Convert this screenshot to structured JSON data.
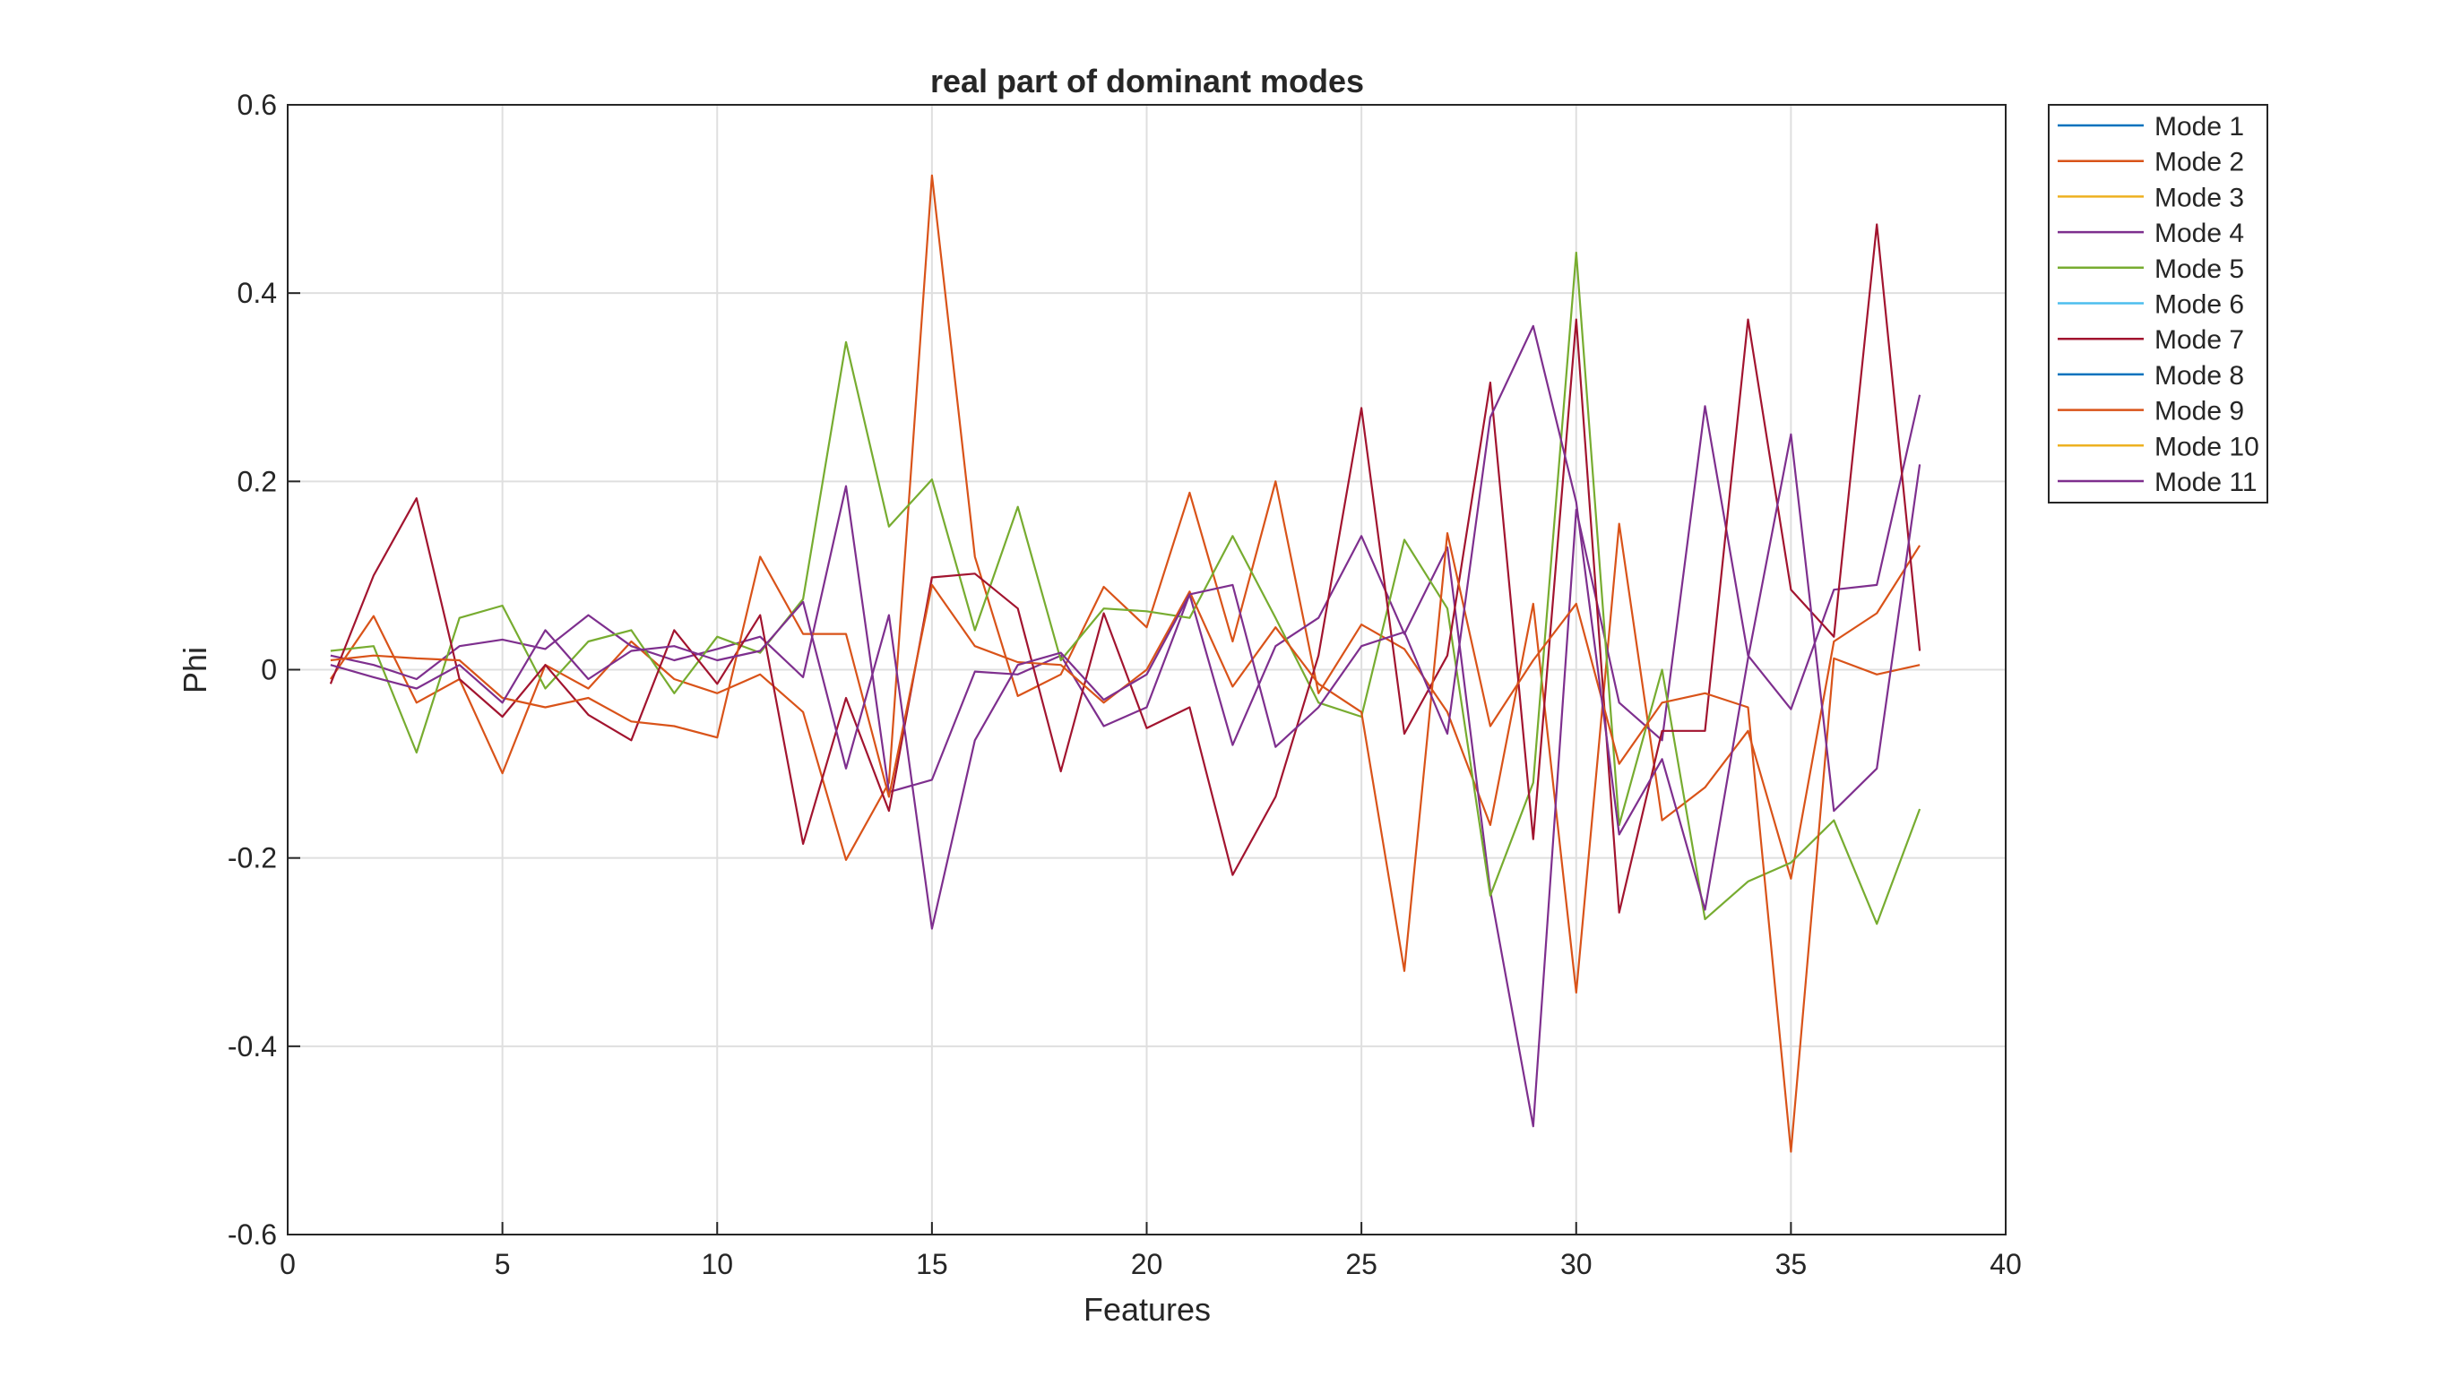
{
  "chart_data": {
    "type": "line",
    "title": "real part of dominant modes",
    "xlabel": "Features",
    "ylabel": "Phi",
    "xlim": [
      0,
      40
    ],
    "ylim": [
      -0.6,
      0.6
    ],
    "xticks": [
      0,
      5,
      10,
      15,
      20,
      25,
      30,
      35,
      40
    ],
    "yticks": [
      0.6,
      0.4,
      0.2,
      0,
      -0.2,
      -0.4,
      -0.6
    ],
    "xtick_labels": [
      "0",
      "5",
      "10",
      "15",
      "20",
      "25",
      "30",
      "35",
      "40"
    ],
    "ytick_labels": [
      "0.6",
      "0.4",
      "0.2",
      "0",
      "-0.2",
      "-0.4",
      "-0.6"
    ],
    "grid": true,
    "legend_position": "outside-top-right",
    "x": [
      1,
      2,
      3,
      4,
      5,
      6,
      7,
      8,
      9,
      10,
      11,
      12,
      13,
      14,
      15,
      16,
      17,
      18,
      19,
      20,
      21,
      22,
      23,
      24,
      25,
      26,
      27,
      28,
      29,
      30,
      31,
      32,
      33,
      34,
      35,
      36,
      37,
      38
    ],
    "series": [
      {
        "name": "Mode 1",
        "color": "#0072BD",
        "values": null
      },
      {
        "name": "Mode 2",
        "color": "#D95319",
        "values": [
          -0.01,
          0.057,
          -0.035,
          -0.01,
          -0.11,
          0.005,
          -0.02,
          0.03,
          -0.01,
          -0.025,
          -0.005,
          -0.045,
          -0.202,
          -0.12,
          0.525,
          0.12,
          -0.028,
          -0.005,
          0.088,
          0.045,
          0.188,
          0.03,
          0.2,
          -0.025,
          0.048,
          0.022,
          -0.045,
          -0.165,
          0.07,
          -0.343,
          0.155,
          -0.16,
          -0.125,
          -0.065,
          -0.222,
          0.03,
          0.06,
          0.132
        ]
      },
      {
        "name": "Mode 3",
        "color": "#EDB120",
        "values": null
      },
      {
        "name": "Mode 4",
        "color": "#7E2F8E",
        "values": [
          0.015,
          0.005,
          -0.01,
          0.025,
          0.032,
          0.022,
          0.058,
          0.025,
          0.01,
          0.022,
          0.035,
          -0.008,
          0.195,
          -0.13,
          -0.117,
          -0.002,
          -0.005,
          0.015,
          -0.06,
          -0.04,
          0.08,
          -0.08,
          0.025,
          0.055,
          0.142,
          0.038,
          0.13,
          -0.235,
          -0.485,
          0.17,
          -0.035,
          -0.075,
          0.28,
          0.015,
          -0.042,
          0.085,
          0.09,
          0.292
        ]
      },
      {
        "name": "Mode 5",
        "color": "#77AC30",
        "values": [
          0.02,
          0.025,
          -0.088,
          0.055,
          0.068,
          -0.02,
          0.03,
          0.042,
          -0.025,
          0.035,
          0.018,
          0.075,
          0.348,
          0.152,
          0.202,
          0.042,
          0.173,
          0.01,
          0.065,
          0.062,
          0.055,
          0.142,
          0.055,
          -0.035,
          -0.05,
          0.138,
          0.065,
          -0.24,
          -0.12,
          0.443,
          -0.165,
          0.0,
          -0.265,
          -0.225,
          -0.205,
          -0.16,
          -0.27,
          -0.148
        ]
      },
      {
        "name": "Mode 6",
        "color": "#4DBEEE",
        "values": null
      },
      {
        "name": "Mode 7",
        "color": "#A2142F",
        "values": [
          -0.015,
          0.1,
          0.182,
          -0.01,
          -0.05,
          0.005,
          -0.048,
          -0.075,
          0.042,
          -0.015,
          0.058,
          -0.185,
          -0.03,
          -0.15,
          0.098,
          0.102,
          0.065,
          -0.108,
          0.06,
          -0.062,
          -0.04,
          -0.218,
          -0.135,
          0.015,
          0.278,
          -0.068,
          0.015,
          0.305,
          -0.18,
          0.372,
          -0.258,
          -0.065,
          -0.065,
          0.372,
          0.085,
          0.035,
          0.473,
          0.02
        ]
      },
      {
        "name": "Mode 8",
        "color": "#0072BD",
        "values": null
      },
      {
        "name": "Mode 9",
        "color": "#D95319",
        "values": [
          0.01,
          0.015,
          0.012,
          0.01,
          -0.03,
          -0.04,
          -0.03,
          -0.055,
          -0.06,
          -0.072,
          0.12,
          0.038,
          0.038,
          -0.135,
          0.09,
          0.025,
          0.008,
          0.005,
          -0.035,
          0.0,
          0.083,
          -0.018,
          0.045,
          -0.015,
          -0.045,
          -0.32,
          0.145,
          -0.06,
          0.01,
          0.07,
          -0.1,
          -0.035,
          -0.025,
          -0.04,
          -0.512,
          0.012,
          -0.005,
          0.005
        ]
      },
      {
        "name": "Mode 10",
        "color": "#EDB120",
        "values": null
      },
      {
        "name": "Mode 11",
        "color": "#7E2F8E",
        "values": [
          0.005,
          -0.008,
          -0.02,
          0.005,
          -0.035,
          0.042,
          -0.01,
          0.02,
          0.025,
          0.01,
          0.02,
          0.072,
          -0.105,
          0.058,
          -0.275,
          -0.075,
          0.005,
          0.018,
          -0.032,
          -0.005,
          0.08,
          0.09,
          -0.082,
          -0.04,
          0.025,
          0.04,
          -0.068,
          0.268,
          0.365,
          0.178,
          -0.175,
          -0.095,
          -0.255,
          0.012,
          0.25,
          -0.15,
          -0.105,
          0.218
        ]
      }
    ]
  }
}
